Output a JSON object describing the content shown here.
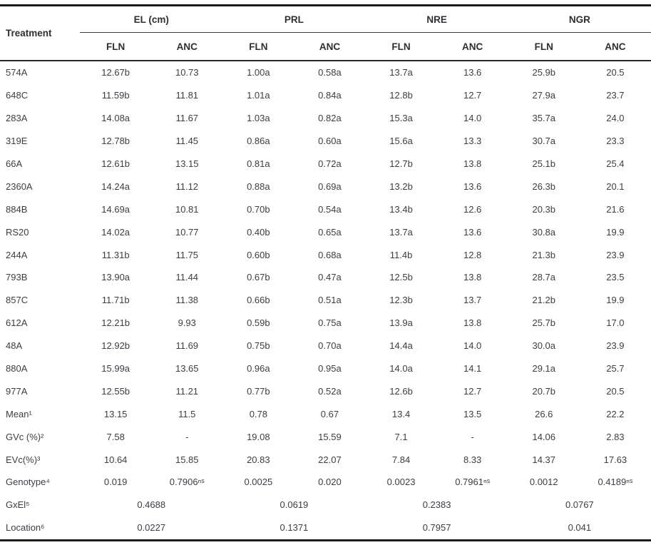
{
  "table": {
    "corner_header": "Treatment",
    "groups": [
      {
        "label": "EL (cm)"
      },
      {
        "label": "PRL"
      },
      {
        "label": "NRE"
      },
      {
        "label": "NGR"
      }
    ],
    "subheaders": [
      "FLN",
      "ANC",
      "FLN",
      "ANC",
      "FLN",
      "ANC",
      "FLN",
      "ANC"
    ],
    "rows": [
      {
        "label": "574A",
        "cells": [
          "12.67b",
          "10.73",
          "1.00a",
          "0.58a",
          "13.7a",
          "13.6",
          "25.9b",
          "20.5"
        ]
      },
      {
        "label": "648C",
        "cells": [
          "11.59b",
          "11.81",
          "1.01a",
          "0.84a",
          "12.8b",
          "12.7",
          "27.9a",
          "23.7"
        ]
      },
      {
        "label": "283A",
        "cells": [
          "14.08a",
          "11.67",
          "1.03a",
          "0.82a",
          "15.3a",
          "14.0",
          "35.7a",
          "24.0"
        ]
      },
      {
        "label": "319E",
        "cells": [
          "12.78b",
          "11.45",
          "0.86a",
          "0.60a",
          "15.6a",
          "13.3",
          "30.7a",
          "23.3"
        ]
      },
      {
        "label": "66A",
        "cells": [
          "12.61b",
          "13.15",
          "0.81a",
          "0.72a",
          "12.7b",
          "13.8",
          "25.1b",
          "25.4"
        ]
      },
      {
        "label": "2360A",
        "cells": [
          "14.24a",
          "11.12",
          "0.88a",
          "0.69a",
          "13.2b",
          "13.6",
          "26.3b",
          "20.1"
        ]
      },
      {
        "label": "884B",
        "cells": [
          "14.69a",
          "10.81",
          "0.70b",
          "0.54a",
          "13.4b",
          "12.6",
          "20.3b",
          "21.6"
        ]
      },
      {
        "label": "RS20",
        "cells": [
          "14.02a",
          "10.77",
          "0.40b",
          "0.65a",
          "13.7a",
          "13.6",
          "30.8a",
          "19.9"
        ]
      },
      {
        "label": "244A",
        "cells": [
          "11.31b",
          "11.75",
          "0.60b",
          "0.68a",
          "11.4b",
          "12.8",
          "21.3b",
          "23.9"
        ]
      },
      {
        "label": "793B",
        "cells": [
          "13.90a",
          "11.44",
          "0.67b",
          "0.47a",
          "12.5b",
          "13.8",
          "28.7a",
          "23.5"
        ]
      },
      {
        "label": "857C",
        "cells": [
          "11.71b",
          "11.38",
          "0.66b",
          "0.51a",
          "12.3b",
          "13.7",
          "21.2b",
          "19.9"
        ]
      },
      {
        "label": "612A",
        "cells": [
          "12.21b",
          "9.93",
          "0.59b",
          "0.75a",
          "13.9a",
          "13.8",
          "25.7b",
          "17.0"
        ]
      },
      {
        "label": "48A",
        "cells": [
          "12.92b",
          "11.69",
          "0.75b",
          "0.70a",
          "14.4a",
          "14.0",
          "30.0a",
          "23.9"
        ]
      },
      {
        "label": "880A",
        "cells": [
          "15.99a",
          "13.65",
          "0.96a",
          "0.95a",
          "14.0a",
          "14.1",
          "29.1a",
          "25.7"
        ]
      },
      {
        "label": "977A",
        "cells": [
          "12.55b",
          "11.21",
          "0.77b",
          "0.52a",
          "12.6b",
          "12.7",
          "20.7b",
          "20.5"
        ]
      },
      {
        "label": "Mean¹",
        "cells": [
          "13.15",
          "11.5",
          "0.78",
          "0.67",
          "13.4",
          "13.5",
          "26.6",
          "22.2"
        ]
      },
      {
        "label": "GVc (%)²",
        "cells": [
          "7.58",
          "-",
          "19.08",
          "15.59",
          "7.1",
          "-",
          "14.06",
          "2.83"
        ]
      },
      {
        "label": "EVc(%)³",
        "cells": [
          "10.64",
          "15.85",
          "20.83",
          "22.07",
          "7.84",
          "8.33",
          "14.37",
          "17.63"
        ]
      },
      {
        "label": "Genotype⁴",
        "cells": [
          "0.019",
          "0.7906ⁿˢ",
          "0.0025",
          "0.020",
          "0.0023",
          "0.7961ⁿˢ",
          "0.0012",
          "0.4189ⁿˢ"
        ]
      },
      {
        "label": "GxEl⁵",
        "span2": true,
        "cells": [
          "0.4688",
          "0.0619",
          "0.2383",
          "0.0767"
        ]
      },
      {
        "label": "Location⁶",
        "span2": true,
        "cells": [
          "0.0227",
          "0.1371",
          "0.7957",
          "0.041"
        ]
      }
    ]
  },
  "colors": {
    "background": "#ffffff",
    "text": "#3d3d44",
    "header_text": "#2e2e33",
    "rule_thick": "#1b1b1b",
    "rule_thin": "#3a3a3a"
  }
}
